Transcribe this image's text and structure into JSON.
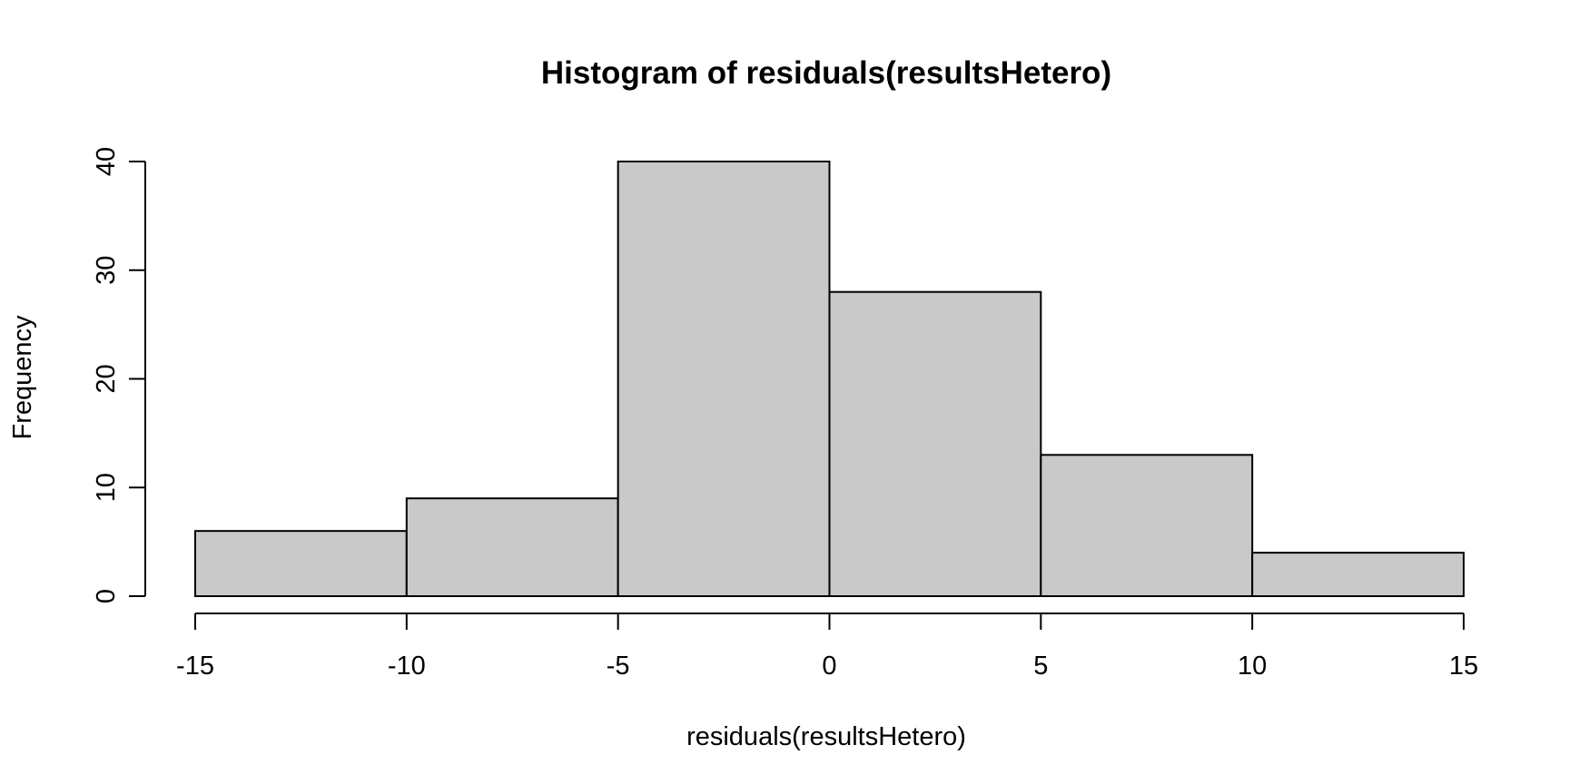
{
  "chart_data": {
    "type": "bar",
    "title": "Histogram of residuals(resultsHetero)",
    "xlabel": "residuals(resultsHetero)",
    "ylabel": "Frequency",
    "bin_edges": [
      -15,
      -10,
      -5,
      0,
      5,
      10,
      15
    ],
    "values": [
      6,
      9,
      40,
      28,
      13,
      4
    ],
    "xlim": [
      -15,
      15
    ],
    "ylim": [
      0,
      40
    ],
    "x_ticks": [
      -15,
      -10,
      -5,
      0,
      5,
      10,
      15
    ],
    "y_ticks": [
      0,
      10,
      20,
      30,
      40
    ],
    "grid": false,
    "bar_color": "#c9c9c9",
    "edge_color": "#000000"
  }
}
